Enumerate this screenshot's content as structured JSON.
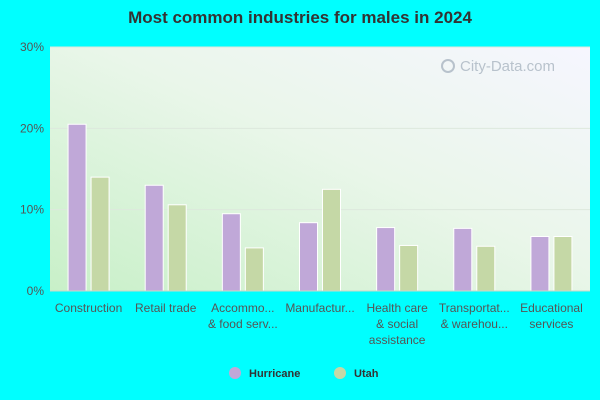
{
  "chart_data": {
    "type": "bar",
    "title": "Most common industries for males in 2024",
    "categories": [
      [
        "Construction"
      ],
      [
        "Retail trade"
      ],
      [
        "Accommo...",
        "& food serv..."
      ],
      [
        "Manufactur..."
      ],
      [
        "Health care",
        "& social",
        "assistance"
      ],
      [
        "Transportat...",
        "& warehou..."
      ],
      [
        "Educational",
        "services"
      ]
    ],
    "series": [
      {
        "name": "Hurricane",
        "color": "#c0a8d8",
        "values": [
          20.5,
          13.0,
          9.5,
          8.4,
          7.8,
          7.7,
          6.7
        ]
      },
      {
        "name": "Utah",
        "color": "#c5d8a6",
        "values": [
          14.0,
          10.6,
          5.3,
          12.5,
          5.6,
          5.5,
          6.7
        ]
      }
    ],
    "ylim": [
      0,
      30
    ],
    "yticks": [
      0,
      10,
      20,
      30
    ],
    "ytick_labels": [
      "0%",
      "10%",
      "20%",
      "30%"
    ],
    "grid": true,
    "legend": "bottom-center"
  },
  "watermark": "City-Data.com"
}
